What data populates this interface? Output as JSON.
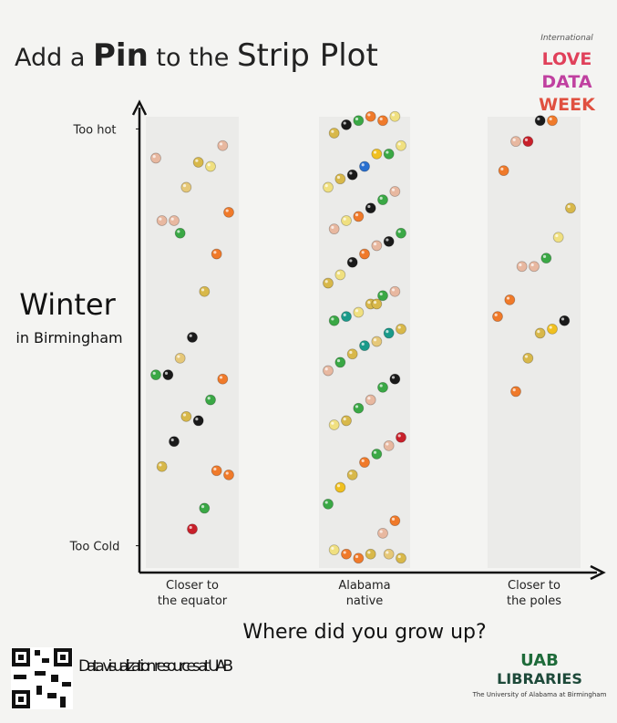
{
  "chart_data": {
    "type": "strip",
    "title": [
      "Add a",
      "Pin",
      "to the",
      "Strip Plot"
    ],
    "badge": {
      "kicker": "International",
      "lines": [
        "LOVE",
        "DATA",
        "WEEK"
      ]
    },
    "ylabel": [
      "Winter",
      "in Birmingham"
    ],
    "xlabel": "Where did you grow up?",
    "categories": [
      "Closer to the equator",
      "Alabama native",
      "Closer to the poles"
    ],
    "ylim": [
      -0.6,
      10.6
    ],
    "yticks": [
      {
        "value": 10,
        "label": "Too hot"
      },
      {
        "value": 0,
        "label": "Too Cold"
      }
    ],
    "series": [
      {
        "values": [
          9.3,
          9.6,
          9.1,
          9.2,
          8.6,
          7.8,
          7.8,
          8.0,
          7.0,
          6.1,
          5.0,
          4.5,
          4.1,
          4.1,
          4.0,
          3.5,
          3.0,
          3.1,
          2.5,
          1.9,
          1.7,
          1.8,
          0.9,
          0.4,
          7.5
        ],
        "colors": [
          "#e8b8a0",
          "#e8b8a0",
          "#f0e080",
          "#d8b84a",
          "#e6c878",
          "#e8b8a0",
          "#e8b8a0",
          "#f07a2a",
          "#f07a2a",
          "#d8b84a",
          "#1a1a1a",
          "#e6c878",
          "#1a1a1a",
          "#3aa845",
          "#f07a2a",
          "#3aa845",
          "#1a1a1a",
          "#d8b84a",
          "#1a1a1a",
          "#d8b84a",
          "#f07a2a",
          "#f07a2a",
          "#3aa845",
          "#c8202a",
          "#3aa845"
        ]
      },
      {
        "values": [
          10.3,
          10.2,
          10.3,
          10.2,
          10.1,
          9.9,
          9.6,
          9.4,
          9.4,
          9.1,
          8.9,
          8.8,
          8.6,
          8.5,
          8.3,
          8.1,
          7.9,
          7.8,
          7.6,
          7.5,
          7.3,
          7.2,
          7.0,
          6.8,
          6.5,
          6.3,
          6.1,
          6.0,
          5.8,
          5.6,
          5.5,
          5.4,
          5.2,
          5.1,
          4.9,
          4.8,
          4.6,
          4.4,
          4.2,
          4.0,
          3.8,
          3.5,
          3.3,
          3.0,
          2.9,
          2.6,
          2.4,
          2.2,
          2.0,
          1.7,
          1.4,
          1.0,
          0.6,
          0.3,
          -0.2,
          -0.3,
          -0.2,
          -0.1,
          -0.3,
          -0.2,
          5.8
        ],
        "colors": [
          "#f0e080",
          "#f07a2a",
          "#f07a2a",
          "#3aa845",
          "#1a1a1a",
          "#d8b84a",
          "#f0e080",
          "#3aa845",
          "#f0c020",
          "#2a70d0",
          "#1a1a1a",
          "#d8b84a",
          "#f0e080",
          "#e8b8a0",
          "#3aa845",
          "#1a1a1a",
          "#f07a2a",
          "#f0e080",
          "#e8b8a0",
          "#3aa845",
          "#1a1a1a",
          "#e8b8a0",
          "#f07a2a",
          "#1a1a1a",
          "#f0e080",
          "#d8b84a",
          "#e8b8a0",
          "#3aa845",
          "#d8b84a",
          "#f0e080",
          "#1a9a8a",
          "#3aa845",
          "#d8b84a",
          "#1a9a8a",
          "#e6c878",
          "#1a9a8a",
          "#d8b84a",
          "#3aa845",
          "#e8b8a0",
          "#1a1a1a",
          "#3aa845",
          "#e8b8a0",
          "#3aa845",
          "#d8b84a",
          "#f0e080",
          "#c8202a",
          "#e8b8a0",
          "#3aa845",
          "#f07a2a",
          "#d8b84a",
          "#f0c020",
          "#3aa845",
          "#f07a2a",
          "#e8b8a0",
          "#d8b84a",
          "#f07a2a",
          "#f07a2a",
          "#f0e080",
          "#d8b84a",
          "#e6c878",
          "#d8b84a"
        ]
      },
      {
        "values": [
          10.2,
          10.2,
          9.7,
          9.7,
          9.0,
          8.1,
          7.4,
          6.9,
          6.7,
          6.7,
          5.9,
          5.5,
          5.4,
          5.2,
          5.1,
          4.5,
          3.7
        ],
        "colors": [
          "#f07a2a",
          "#1a1a1a",
          "#c8202a",
          "#e8b8a0",
          "#f07a2a",
          "#d8b84a",
          "#f0e080",
          "#3aa845",
          "#e8b8a0",
          "#e8b8a0",
          "#f07a2a",
          "#f07a2a",
          "#1a1a1a",
          "#f0c020",
          "#d8b84a",
          "#d8b84a",
          "#f07a2a"
        ]
      }
    ],
    "footer": {
      "resources": "Data visualization resources at UAB",
      "logo": "UAB",
      "library": "LIBRARIES",
      "university": "The University of Alabama at Birmingham"
    }
  }
}
